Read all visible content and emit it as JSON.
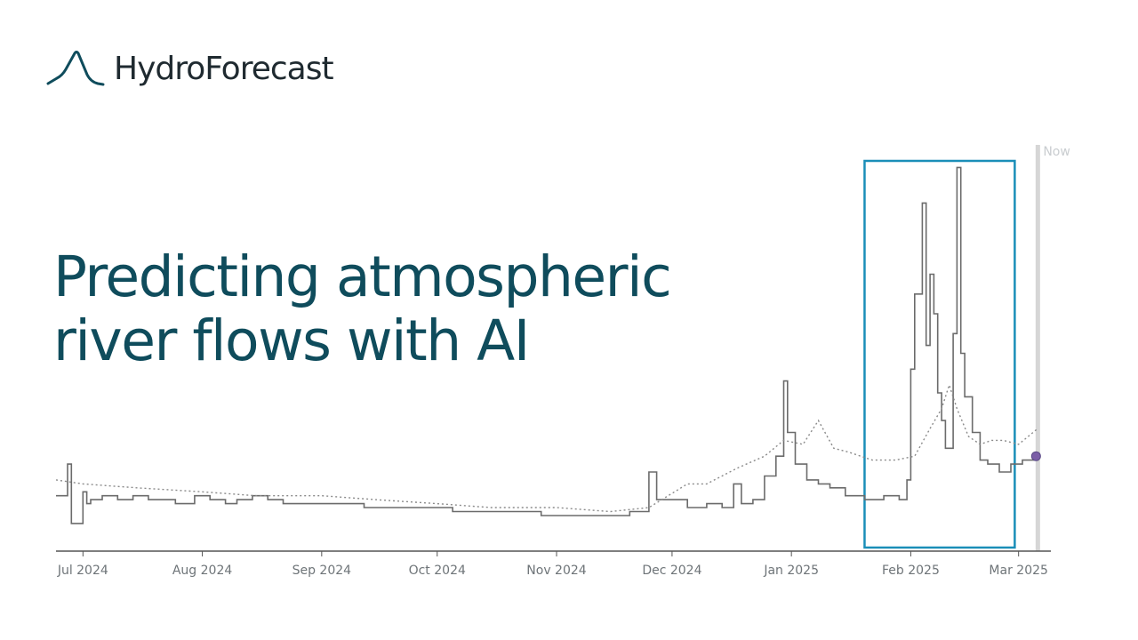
{
  "brand": {
    "name": "HydroForecast",
    "logo_icon": "hydrograph-peak-icon",
    "logo_color": "#0f4c5c"
  },
  "headline": {
    "line1": "Predicting atmospheric",
    "line2": "river flows with AI"
  },
  "colors": {
    "headline": "#0f4c5c",
    "highlight_box": "#1a8eb8",
    "observed": "#6b6b6b",
    "forecast": "#8a8a8a",
    "now_line": "#d6d6d6",
    "now_marker": "#7b5ea7"
  },
  "chart_data": {
    "type": "line",
    "x_axis": {
      "type": "date",
      "ticks": [
        "Jul 2024",
        "Aug 2024",
        "Sep 2024",
        "Oct 2024",
        "Nov 2024",
        "Dec 2024",
        "Jan 2025",
        "Feb 2025",
        "Mar 2025"
      ],
      "tick_dates": [
        "2024-07-01",
        "2024-08-01",
        "2024-09-01",
        "2024-10-01",
        "2024-11-01",
        "2024-12-01",
        "2025-01-01",
        "2025-02-01",
        "2025-03-01"
      ],
      "range": [
        "2024-06-24",
        "2025-03-08"
      ]
    },
    "y_axis": {
      "visible": false,
      "range": [
        0,
        100
      ]
    },
    "grid": false,
    "now_marker": {
      "label": "Now",
      "date": "2025-03-06"
    },
    "highlight": {
      "start": "2025-01-20",
      "end": "2025-02-28"
    },
    "series": [
      {
        "style": "solid-step",
        "x": [
          "2024-06-24",
          "2024-06-27",
          "2024-06-28",
          "2024-07-01",
          "2024-07-02",
          "2024-07-03",
          "2024-07-06",
          "2024-07-10",
          "2024-07-14",
          "2024-07-18",
          "2024-07-25",
          "2024-07-30",
          "2024-08-03",
          "2024-08-07",
          "2024-08-10",
          "2024-08-14",
          "2024-08-18",
          "2024-08-22",
          "2024-08-28",
          "2024-09-05",
          "2024-09-12",
          "2024-09-20",
          "2024-09-28",
          "2024-10-05",
          "2024-10-12",
          "2024-10-20",
          "2024-10-28",
          "2024-11-04",
          "2024-11-12",
          "2024-11-20",
          "2024-11-25",
          "2024-11-27",
          "2024-11-30",
          "2024-12-05",
          "2024-12-10",
          "2024-12-14",
          "2024-12-17",
          "2024-12-19",
          "2024-12-22",
          "2024-12-25",
          "2024-12-28",
          "2024-12-30",
          "2024-12-31",
          "2025-01-02",
          "2025-01-05",
          "2025-01-08",
          "2025-01-11",
          "2025-01-15",
          "2025-01-20",
          "2025-01-25",
          "2025-01-29",
          "2025-01-31",
          "2025-02-01",
          "2025-02-02",
          "2025-02-04",
          "2025-02-05",
          "2025-02-06",
          "2025-02-07",
          "2025-02-08",
          "2025-02-09",
          "2025-02-10",
          "2025-02-12",
          "2025-02-13",
          "2025-02-14",
          "2025-02-15",
          "2025-02-17",
          "2025-02-19",
          "2025-02-21",
          "2025-02-24",
          "2025-02-27",
          "2025-03-02",
          "2025-03-06"
        ],
        "y": [
          14,
          22,
          7,
          15,
          12,
          13,
          14,
          13,
          14,
          13,
          12,
          14,
          13,
          12,
          13,
          14,
          13,
          12,
          12,
          12,
          11,
          11,
          11,
          10,
          10,
          10,
          9,
          9,
          9,
          10,
          20,
          13,
          13,
          11,
          12,
          11,
          17,
          12,
          13,
          19,
          24,
          43,
          30,
          22,
          18,
          17,
          16,
          14,
          13,
          14,
          13,
          18,
          46,
          65,
          88,
          52,
          70,
          60,
          40,
          33,
          26,
          55,
          97,
          50,
          39,
          30,
          23,
          22,
          20,
          22,
          23,
          24
        ]
      },
      {
        "style": "dotted",
        "x": [
          "2024-06-24",
          "2024-07-01",
          "2024-07-15",
          "2024-08-01",
          "2024-08-15",
          "2024-09-01",
          "2024-09-15",
          "2024-10-01",
          "2024-10-15",
          "2024-11-01",
          "2024-11-15",
          "2024-11-25",
          "2024-12-05",
          "2024-12-10",
          "2024-12-18",
          "2024-12-25",
          "2024-12-30",
          "2025-01-04",
          "2025-01-08",
          "2025-01-12",
          "2025-01-16",
          "2025-01-22",
          "2025-01-28",
          "2025-02-02",
          "2025-02-06",
          "2025-02-09",
          "2025-02-11",
          "2025-02-13",
          "2025-02-16",
          "2025-02-19",
          "2025-02-22",
          "2025-02-25",
          "2025-03-01",
          "2025-03-06"
        ],
        "y": [
          18,
          17,
          16,
          15,
          14,
          14,
          13,
          12,
          11,
          11,
          10,
          11,
          17,
          17,
          21,
          24,
          28,
          27,
          33,
          26,
          25,
          23,
          23,
          24,
          31,
          36,
          42,
          36,
          29,
          27,
          28,
          28,
          27,
          31
        ]
      }
    ]
  }
}
